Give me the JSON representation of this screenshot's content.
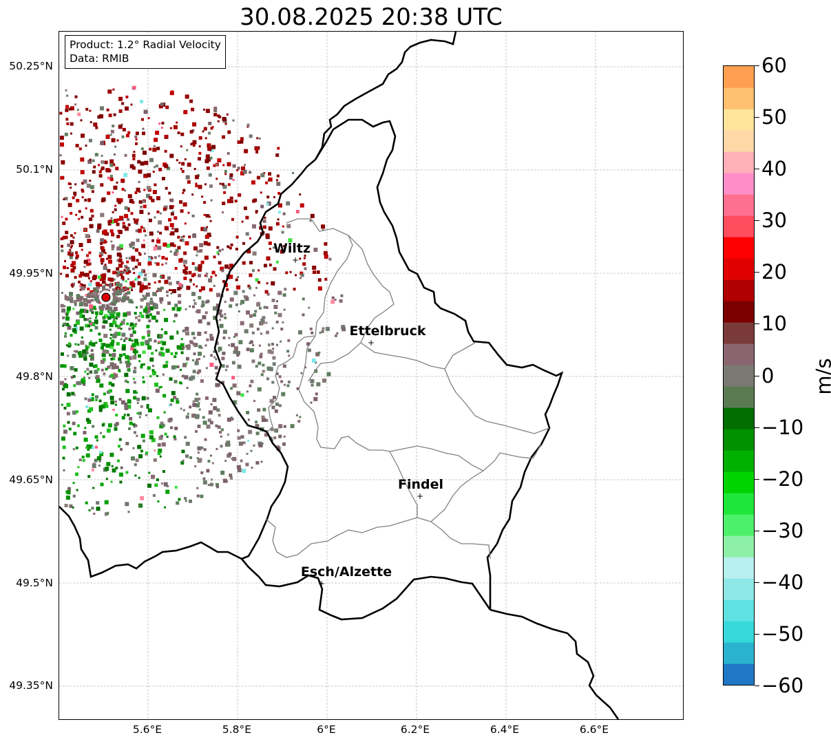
{
  "title": "30.08.2025 20:38 UTC",
  "info": {
    "product": "Product: 1.2° Radial Velocity",
    "data": "Data: RMIB"
  },
  "axes": {
    "lat_labels": [
      "50.25°N",
      "50.1°N",
      "49.95°N",
      "49.8°N",
      "49.65°N",
      "49.5°N",
      "49.35°N"
    ],
    "lon_labels": [
      "5.6°E",
      "5.8°E",
      "6°E",
      "6.2°E",
      "6.4°E",
      "6.6°E"
    ],
    "lat_range": [
      49.3,
      50.3
    ],
    "lon_range": [
      5.4,
      6.8
    ],
    "grid": true
  },
  "cities": [
    {
      "name": "Wiltz",
      "lon": 5.935,
      "lat": 49.966
    },
    {
      "name": "Ettelbruck",
      "lon": 6.103,
      "lat": 49.848
    },
    {
      "name": "Findel",
      "lon": 6.211,
      "lat": 49.626
    },
    {
      "name": "Esch/Alzette",
      "lon": 5.991,
      "lat": 49.498
    }
  ],
  "radar_site": {
    "lon": 5.506,
    "lat": 49.915,
    "color": "#e00000"
  },
  "colorbar": {
    "unit": "m/s",
    "min": -60,
    "max": 60,
    "ticks": [
      "60",
      "50",
      "40",
      "30",
      "20",
      "10",
      "0",
      "−10",
      "−20",
      "−30",
      "−40",
      "−50",
      "−60"
    ],
    "colors": [
      "#1f78c4",
      "#2ab3cf",
      "#35d9da",
      "#5fe1e1",
      "#8ee8e8",
      "#b8f0f0",
      "#8ef0a8",
      "#4df06a",
      "#1ee63a",
      "#00d400",
      "#00b000",
      "#009000",
      "#006e00",
      "#5a7a52",
      "#7a7a72",
      "#8a6570",
      "#7a3a3a",
      "#7a0000",
      "#b00000",
      "#e00000",
      "#ff0000",
      "#ff4d5e",
      "#ff7090",
      "#ff8ec8",
      "#ffb0b8",
      "#ffd8a8",
      "#ffe49a",
      "#ffc070",
      "#ffa050"
    ]
  }
}
